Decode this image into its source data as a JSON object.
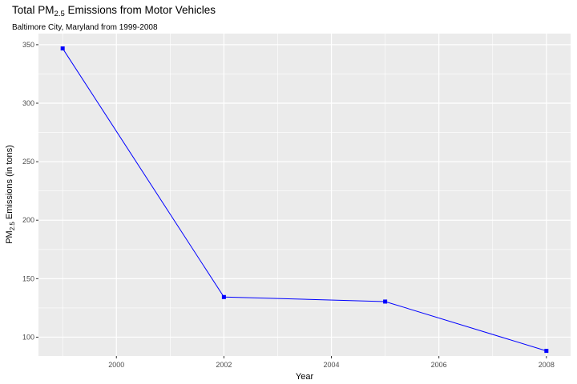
{
  "chart_data": {
    "type": "line",
    "title": {
      "main": "Total PM",
      "sub": "2.5",
      "rest": " Emissions from Motor Vehicles"
    },
    "subtitle": "Baltimore City, Maryland from 1999-2008",
    "xlabel": "Year",
    "ylabel": {
      "main": "PM",
      "sub": "2.5",
      "rest": " Emissions (in tons)"
    },
    "x": [
      1999,
      2002,
      2005,
      2008
    ],
    "values": [
      346.82,
      134.31,
      130.43,
      88.28
    ],
    "xlim": [
      1998.55,
      2008.45
    ],
    "ylim": [
      83.9,
      359.5
    ],
    "xticks": [
      "2000",
      "2002",
      "2004",
      "2006",
      "2008"
    ],
    "yticks": [
      "100",
      "150",
      "200",
      "250",
      "300",
      "350"
    ],
    "grid": true,
    "colors": {
      "line": "#0000ff",
      "panel": "#ebebeb",
      "grid": "#ffffff"
    }
  }
}
